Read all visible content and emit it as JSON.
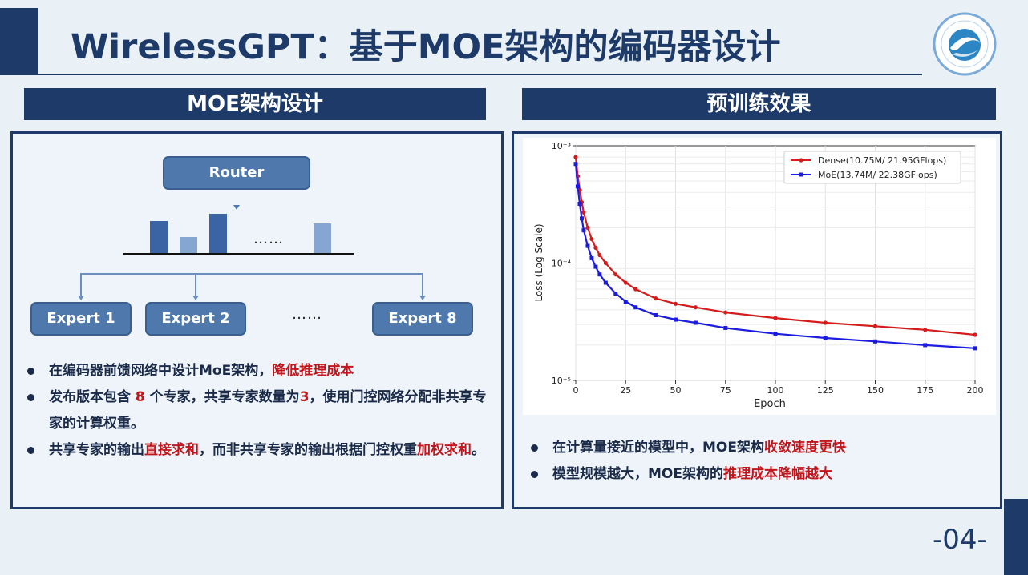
{
  "slide": {
    "title": "WirelessGPT：基于MOE架构的编码器设计",
    "page_number": "-04-"
  },
  "left_section": {
    "heading": "MOE架构设计",
    "router_label": "Router",
    "ellipsis": "……",
    "experts": [
      "Expert 1",
      "Expert 2",
      "Expert 8"
    ],
    "expert_ellipsis": "……",
    "bullets": [
      {
        "parts": [
          {
            "text": "在编码器前馈网络中设计MoE架构，",
            "red": false
          },
          {
            "text": "降低推理成本",
            "red": true
          }
        ]
      },
      {
        "parts": [
          {
            "text": "发布版本包含 ",
            "red": false
          },
          {
            "text": "8",
            "red": true
          },
          {
            "text": " 个专家，共享专家数量为",
            "red": false
          },
          {
            "text": "3",
            "red": true
          },
          {
            "text": "，使用门控网络分配非共享专家的计算权重。",
            "red": false
          }
        ]
      },
      {
        "parts": [
          {
            "text": "共享专家的输出",
            "red": false
          },
          {
            "text": "直接求和",
            "red": true
          },
          {
            "text": "，而非共享专家的输出根据门控权重",
            "red": false
          },
          {
            "text": "加权求和",
            "red": true
          },
          {
            "text": "。",
            "red": false
          }
        ]
      }
    ]
  },
  "right_section": {
    "heading": "预训练效果",
    "bullets": [
      {
        "parts": [
          {
            "text": "在计算量接近的模型中，MOE架构",
            "red": false
          },
          {
            "text": "收敛速度更快",
            "red": true
          }
        ]
      },
      {
        "parts": [
          {
            "text": "模型规模越大，MOE架构的",
            "red": false
          },
          {
            "text": "推理成本降幅越大",
            "red": true
          }
        ]
      }
    ]
  },
  "colors": {
    "navy": "#1d3a68",
    "accent_red": "#c0161c",
    "box_blue": "#4f79ad",
    "dense_line": "#d41c1c",
    "moe_line": "#1c1ce0"
  },
  "chart_data": {
    "type": "line",
    "xlabel": "Epoch",
    "ylabel": "Loss (Log Scale)",
    "xlim": [
      0,
      200
    ],
    "ylim": [
      1e-05,
      0.001
    ],
    "yscale": "log",
    "x_ticks": [
      0,
      25,
      50,
      75,
      100,
      125,
      150,
      175,
      200
    ],
    "y_tick_labels": [
      "10⁻³",
      "10⁻⁴",
      "10⁻⁵"
    ],
    "grid": true,
    "legend_position": "top-right",
    "series": [
      {
        "name": "Dense(10.75M/ 21.95GFlops)",
        "color": "#d41c1c",
        "marker": "circle",
        "x": [
          0,
          1,
          2,
          3,
          4,
          6,
          8,
          10,
          12,
          15,
          20,
          25,
          30,
          40,
          50,
          60,
          75,
          100,
          125,
          150,
          175,
          200
        ],
        "y": [
          0.0008,
          0.00055,
          0.00042,
          0.00033,
          0.00027,
          0.0002,
          0.00016,
          0.000135,
          0.000117,
          0.0001,
          8e-05,
          6.8e-05,
          6e-05,
          5e-05,
          4.5e-05,
          4.2e-05,
          3.8e-05,
          3.4e-05,
          3.1e-05,
          2.9e-05,
          2.7e-05,
          2.45e-05
        ]
      },
      {
        "name": "MoE(13.74M/ 22.38GFlops)",
        "color": "#1c1ce0",
        "marker": "square",
        "x": [
          0,
          1,
          2,
          3,
          4,
          6,
          8,
          10,
          12,
          15,
          20,
          25,
          30,
          40,
          50,
          60,
          75,
          100,
          125,
          150,
          175,
          200
        ],
        "y": [
          0.0007,
          0.00045,
          0.00032,
          0.00024,
          0.00019,
          0.00014,
          0.00011,
          9.3e-05,
          8e-05,
          6.8e-05,
          5.5e-05,
          4.7e-05,
          4.2e-05,
          3.6e-05,
          3.3e-05,
          3.1e-05,
          2.8e-05,
          2.5e-05,
          2.3e-05,
          2.15e-05,
          2e-05,
          1.88e-05
        ]
      }
    ]
  }
}
